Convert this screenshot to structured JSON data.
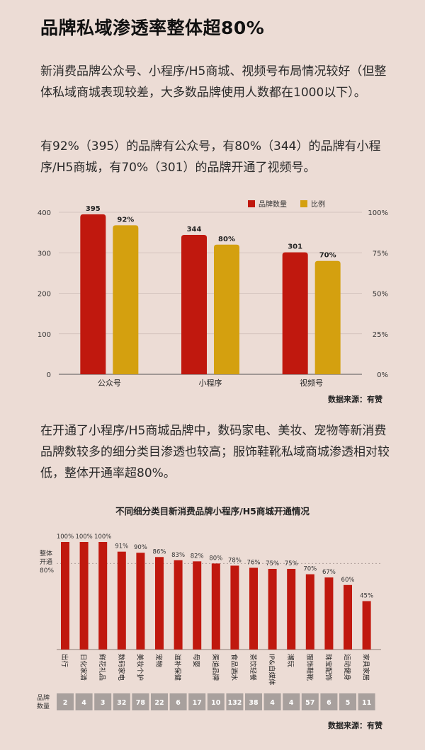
{
  "page": {
    "title": "品牌私域渗透率整体超80%",
    "para1": "新消费品牌公众号、小程序/H5商城、视频号布局情况较好（但整体私域商城表现较差，大多数品牌使用人数都在1000以下）。",
    "para2": "有92%（395）的品牌有公众号，有80%（344）的品牌有小程序/H5商城，有70%（301）的品牌开通了视频号。",
    "para3": "在开通了小程序/H5商城品牌中，数码家电、美妆、宠物等新消费品牌数较多的细分类目渗透也较高；服饰鞋靴私域商城渗透相对较低，整体开通率超80%。",
    "source1": "数据来源：有赞",
    "source2": "数据来源：有赞"
  },
  "chart_data": [
    {
      "type": "bar",
      "categories": [
        "公众号",
        "小程序",
        "视频号"
      ],
      "series": [
        {
          "name": "品牌数量",
          "values": [
            395,
            344,
            301
          ],
          "labels": [
            "395",
            "344",
            "301"
          ],
          "color": "#c0180e",
          "axis": "left"
        },
        {
          "name": "比例",
          "values": [
            92,
            80,
            70
          ],
          "labels": [
            "92%",
            "80%",
            "70%"
          ],
          "color": "#d4a00f",
          "axis": "right"
        }
      ],
      "ylim_left": [
        0,
        400
      ],
      "ylim_right": [
        0,
        100
      ],
      "yticks_left": [
        "0",
        "100",
        "200",
        "300",
        "400"
      ],
      "yticks_right": [
        "0%",
        "25%",
        "50%",
        "75%",
        "100%"
      ],
      "legend_position": "top-right",
      "grid": true
    },
    {
      "type": "bar",
      "title": "不同细分类目新消费品牌小程序/H5商城开通情况",
      "categories": [
        "出行",
        "日化家清",
        "鲜花礼品",
        "数码家电",
        "美妆个护",
        "宠物",
        "滋补保健",
        "母婴",
        "渠道品牌",
        "食品酒水",
        "茶饮轻餐",
        "IP&自媒体",
        "潮玩",
        "服饰鞋靴",
        "珠宝配饰",
        "运动健身",
        "家具家居"
      ],
      "values": [
        100,
        100,
        100,
        91,
        90,
        86,
        83,
        82,
        80,
        78,
        76,
        75,
        75,
        70,
        67,
        60,
        45
      ],
      "labels": [
        "100%",
        "100%",
        "100%",
        "91%",
        "90%",
        "86%",
        "83%",
        "82%",
        "80%",
        "78%",
        "76%",
        "75%",
        "75%",
        "70%",
        "67%",
        "60%",
        "45%"
      ],
      "brand_counts": [
        "2",
        "4",
        "3",
        "32",
        "78",
        "22",
        "6",
        "17",
        "10",
        "132",
        "38",
        "4",
        "4",
        "57",
        "6",
        "5",
        "11"
      ],
      "brand_count_label": "品牌数量",
      "reference_line": {
        "value": 80,
        "label": "整体开通80%"
      },
      "ylim": [
        0,
        100
      ],
      "color": "#c0180e"
    }
  ]
}
